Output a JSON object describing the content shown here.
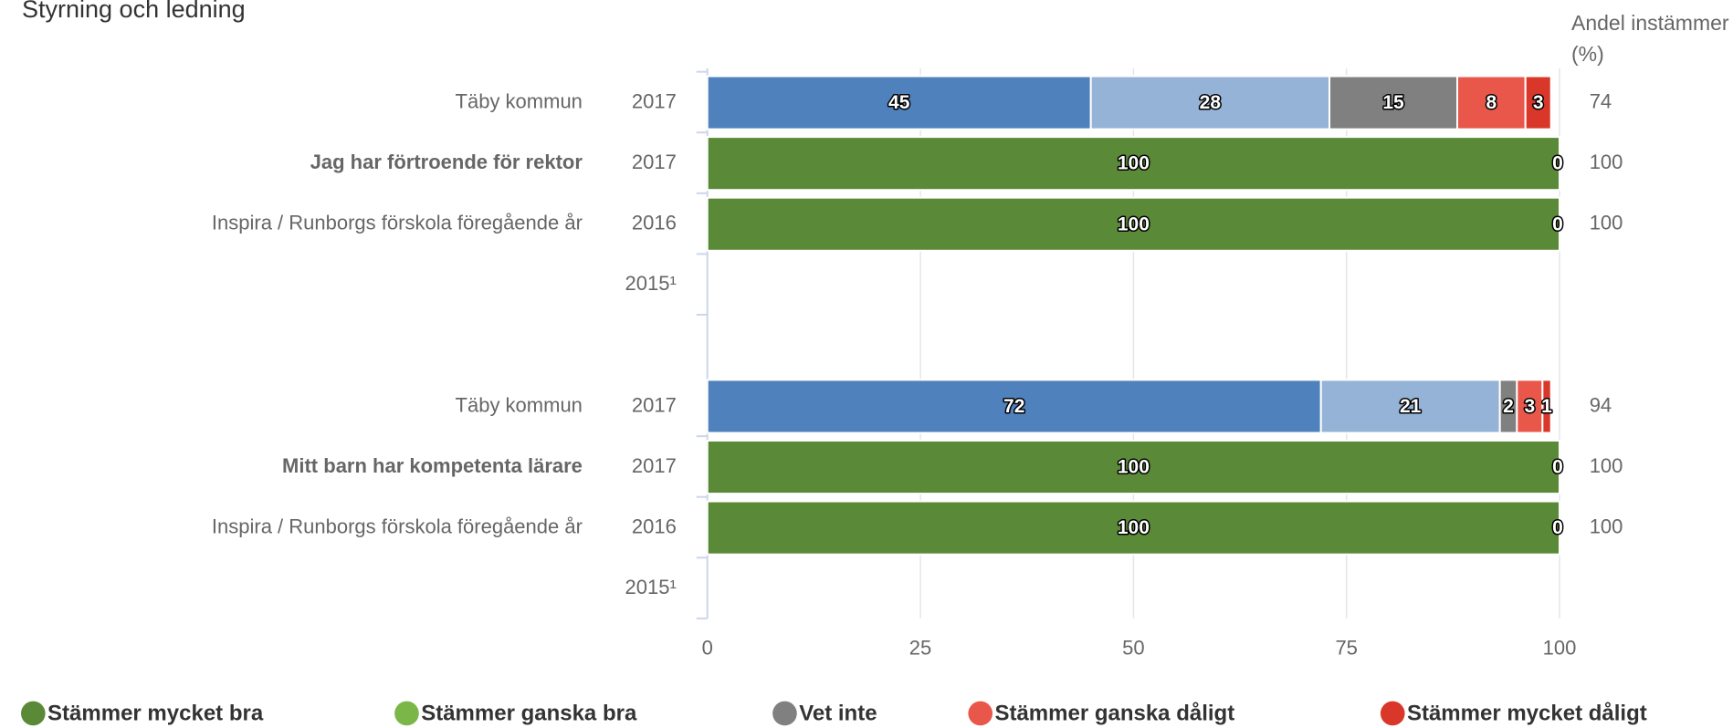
{
  "chart_data": {
    "type": "bar",
    "orientation": "horizontal",
    "stacked": true,
    "title": "Styrning och ledning",
    "share_title": "Andel instämmer (%)",
    "categories": [
      "Täby kommun",
      "Jag har förtroende för rektor",
      "Inspira / Runborgs förskola föregående år",
      null,
      "Täby kommun",
      "Mitt barn har kompetenta lärare",
      "Inspira / Runborgs förskola föregående år",
      null
    ],
    "years": [
      "2017",
      "2017",
      "2016",
      "2015¹",
      "2017",
      "2017",
      "2016",
      "2015¹"
    ],
    "bold_rows": [
      1,
      5
    ],
    "comparison_rows": [
      0,
      4
    ],
    "comparison_colors": [
      "#4f81bd",
      "#95b3d7",
      "#808080",
      "#e8574a",
      "#d9372a"
    ],
    "series": [
      {
        "name": "Stämmer mycket bra",
        "color": "#5a8a37",
        "values": [
          45,
          100,
          100,
          null,
          72,
          100,
          100,
          null
        ]
      },
      {
        "name": "Stämmer ganska bra",
        "color": "#7ab648",
        "values": [
          28,
          0,
          0,
          null,
          21,
          0,
          0,
          null
        ]
      },
      {
        "name": "Vet inte",
        "color": "#808080",
        "values": [
          15,
          null,
          null,
          null,
          2,
          null,
          null,
          null
        ]
      },
      {
        "name": "Stämmer ganska dåligt",
        "color": "#e8574a",
        "values": [
          8,
          null,
          null,
          null,
          3,
          null,
          null,
          null
        ]
      },
      {
        "name": "Stämmer mycket dåligt",
        "color": "#d9372a",
        "values": [
          3,
          null,
          null,
          null,
          1,
          null,
          null,
          null
        ]
      }
    ],
    "share_values": [
      74,
      100,
      100,
      null,
      94,
      100,
      100,
      null
    ],
    "xlim": [
      0,
      100
    ],
    "xticks": [
      0,
      25,
      50,
      75,
      100
    ],
    "grid": true
  }
}
